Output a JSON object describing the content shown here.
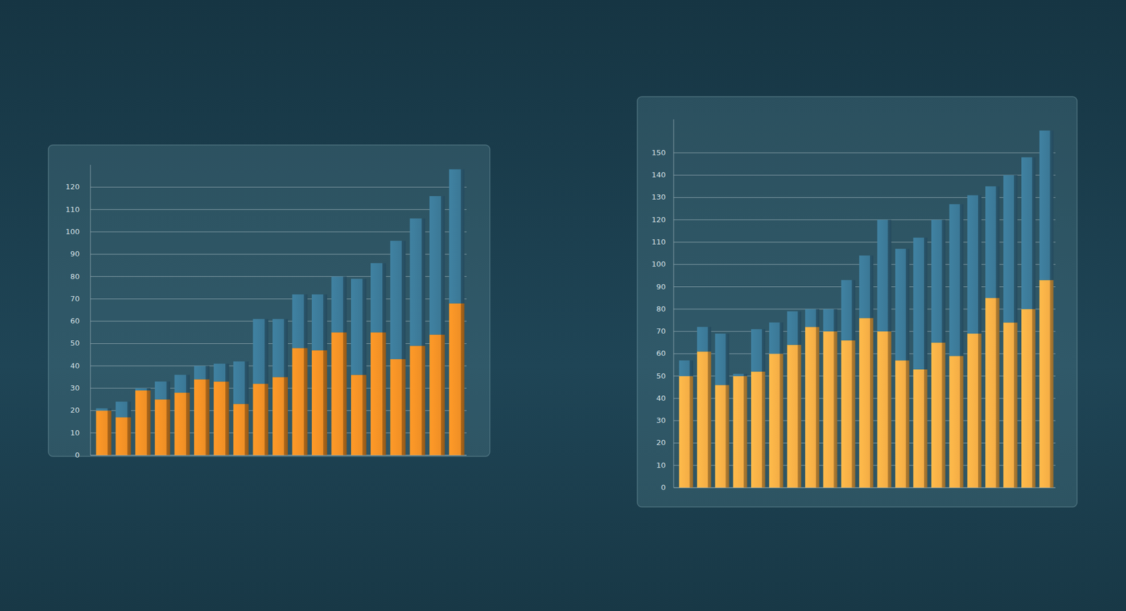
{
  "chart_data": [
    {
      "type": "bar",
      "stacked": true,
      "grid": true,
      "tick_labels": "y",
      "categories": [
        null,
        null,
        null,
        null,
        null,
        null,
        null,
        null,
        null,
        null,
        null,
        null,
        null,
        null,
        null,
        null,
        null,
        null,
        null
      ],
      "series": [
        {
          "color": "#ef8f25",
          "values": [
            20,
            17,
            29,
            25,
            28,
            34,
            33,
            23,
            32,
            35,
            48,
            47,
            55,
            36,
            55,
            43,
            49,
            54,
            68
          ]
        },
        {
          "color": "#3b7896",
          "values": [
            1,
            7,
            1,
            8,
            8,
            6,
            8,
            19,
            29,
            26,
            24,
            25,
            25,
            43,
            31,
            53,
            57,
            62,
            60
          ]
        }
      ],
      "ylim": [
        0,
        130
      ],
      "yticks": [
        0,
        10,
        20,
        30,
        40,
        50,
        60,
        70,
        80,
        90,
        100,
        110,
        120
      ]
    },
    {
      "type": "bar",
      "stacked": true,
      "grid": true,
      "tick_labels": "y",
      "categories": [
        null,
        null,
        null,
        null,
        null,
        null,
        null,
        null,
        null,
        null,
        null,
        null,
        null,
        null,
        null,
        null,
        null,
        null,
        null,
        null,
        null
      ],
      "series": [
        {
          "color": "#f4ad45",
          "values": [
            50,
            61,
            46,
            50,
            52,
            60,
            64,
            72,
            70,
            66,
            76,
            70,
            57,
            53,
            65,
            59,
            69,
            85,
            74,
            80,
            93
          ]
        },
        {
          "color": "#3b7896",
          "values": [
            7,
            11,
            23,
            1,
            19,
            14,
            15,
            8,
            10,
            27,
            28,
            50,
            50,
            59,
            55,
            68,
            62,
            50,
            66,
            68,
            67
          ]
        }
      ],
      "ylim": [
        0,
        165
      ],
      "yticks": [
        0,
        10,
        20,
        30,
        40,
        50,
        60,
        70,
        80,
        90,
        100,
        110,
        120,
        130,
        140,
        150
      ]
    }
  ]
}
